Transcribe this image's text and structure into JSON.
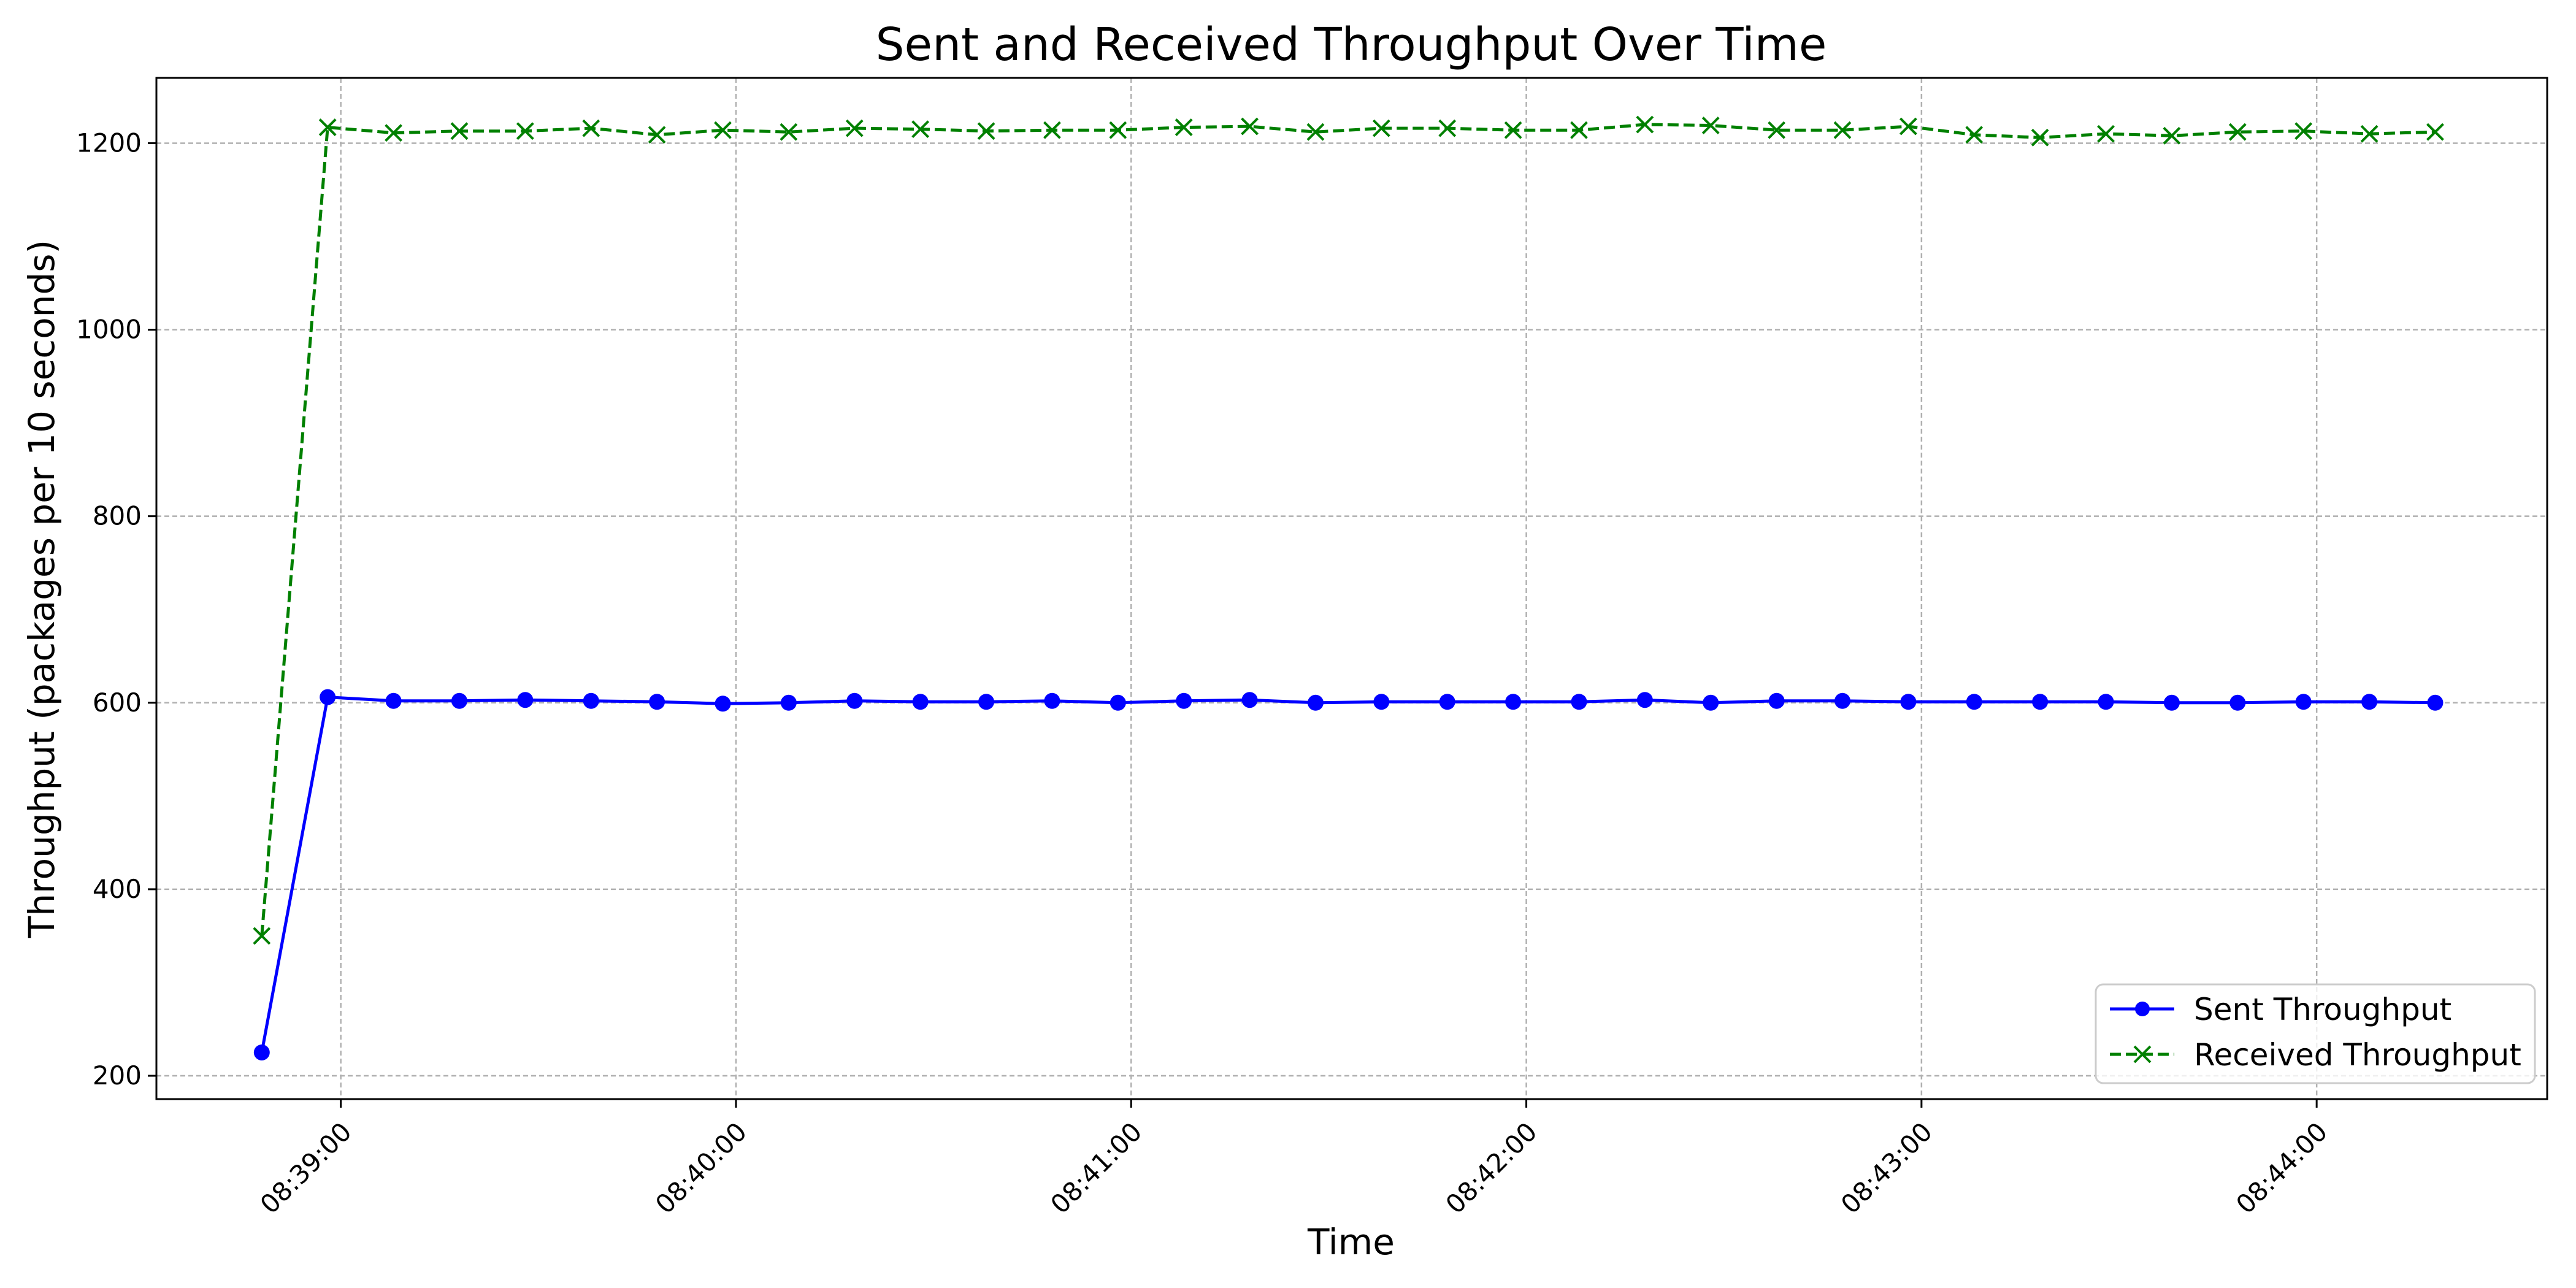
{
  "chart_data": {
    "type": "line",
    "title": "Sent and Received Throughput Over Time",
    "xlabel": "Time",
    "ylabel": "Throughput (packages per 10 seconds)",
    "xlim": [
      "08:38:32",
      "08:44:35"
    ],
    "ylim": [
      175,
      1270
    ],
    "x_ticks": [
      "08:39:00",
      "08:40:00",
      "08:41:00",
      "08:42:00",
      "08:43:00",
      "08:44:00"
    ],
    "y_ticks": [
      200,
      400,
      600,
      800,
      1000,
      1200
    ],
    "grid": true,
    "legend_position": "lower-right",
    "x": [
      "08:38:48",
      "08:38:58",
      "08:39:08",
      "08:39:18",
      "08:39:28",
      "08:39:38",
      "08:39:48",
      "08:39:58",
      "08:40:08",
      "08:40:18",
      "08:40:28",
      "08:40:38",
      "08:40:48",
      "08:40:58",
      "08:41:08",
      "08:41:18",
      "08:41:28",
      "08:41:38",
      "08:41:48",
      "08:41:58",
      "08:42:08",
      "08:42:18",
      "08:42:28",
      "08:42:38",
      "08:42:48",
      "08:42:58",
      "08:43:08",
      "08:43:18",
      "08:43:28",
      "08:43:38",
      "08:43:48",
      "08:43:58",
      "08:44:08",
      "08:44:18"
    ],
    "series": [
      {
        "name": "Sent Throughput",
        "color": "#0000ff",
        "line_style": "solid",
        "marker": "circle",
        "values": [
          225,
          606,
          602,
          602,
          603,
          602,
          601,
          599,
          600,
          602,
          601,
          601,
          602,
          600,
          602,
          603,
          600,
          601,
          601,
          601,
          601,
          603,
          600,
          602,
          602,
          601,
          601,
          601,
          601,
          600,
          600,
          601,
          601,
          600
        ]
      },
      {
        "name": "Received Throughput",
        "color": "#008000",
        "line_style": "dashed",
        "marker": "x",
        "values": [
          350,
          1217,
          1211,
          1213,
          1213,
          1216,
          1209,
          1214,
          1212,
          1216,
          1215,
          1213,
          1214,
          1214,
          1217,
          1218,
          1212,
          1216,
          1216,
          1214,
          1214,
          1220,
          1219,
          1214,
          1214,
          1218,
          1209,
          1206,
          1210,
          1208,
          1212,
          1213,
          1210,
          1212
        ]
      }
    ]
  }
}
